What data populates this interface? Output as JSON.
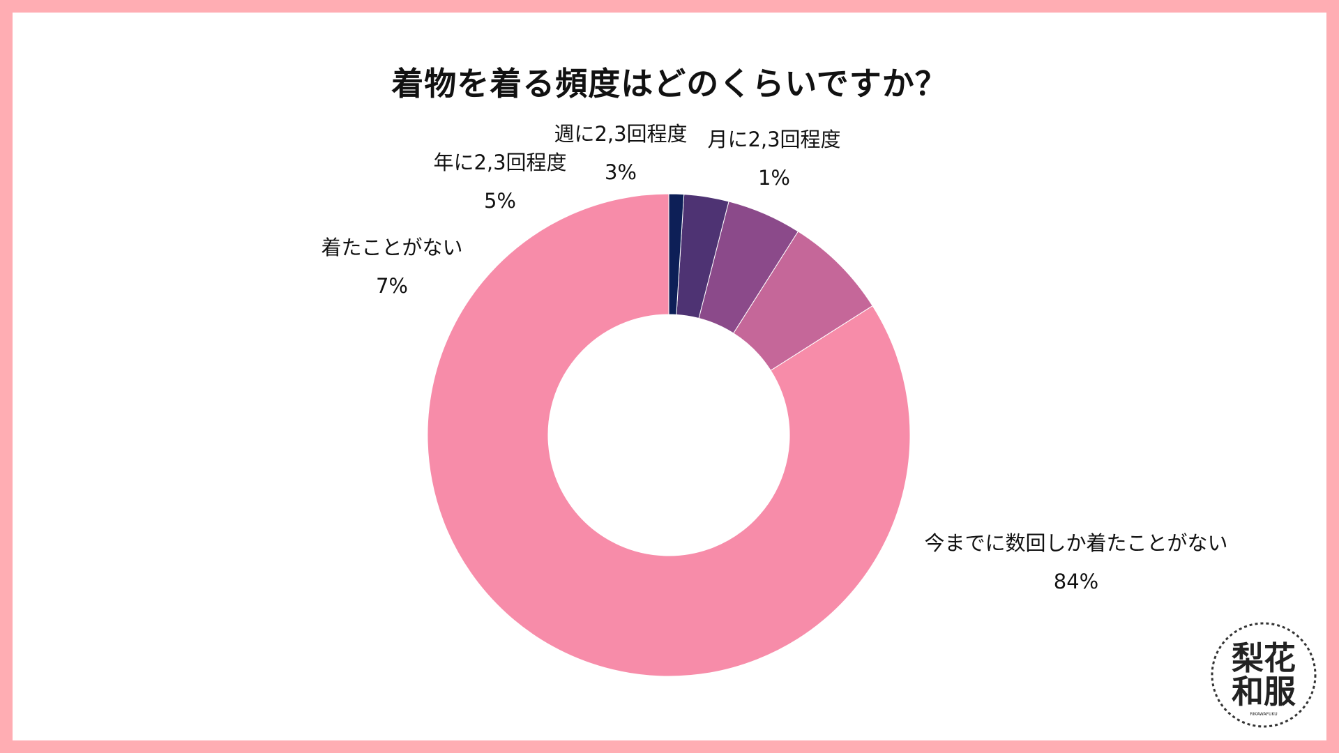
{
  "chart_data": {
    "type": "pie",
    "title": "着物を着る頻度はどのくらいですか？",
    "categories": [
      "今までに数回しか着たことがない",
      "着たことがない",
      "年に2,3回程度",
      "週に2,3回程度",
      "月に2,3回程度"
    ],
    "values": [
      84,
      7,
      5,
      3,
      1
    ],
    "labels": [
      "84%",
      "7%",
      "5%",
      "3%",
      "1%"
    ],
    "colors": [
      "#f78ca9",
      "#c56799",
      "#8b4a8a",
      "#4e3373",
      "#0d1f57"
    ],
    "donut": true,
    "legend": "none"
  },
  "logo": {
    "line1": "梨花",
    "line2": "和服",
    "caption": "RIKAWAFUKU"
  }
}
